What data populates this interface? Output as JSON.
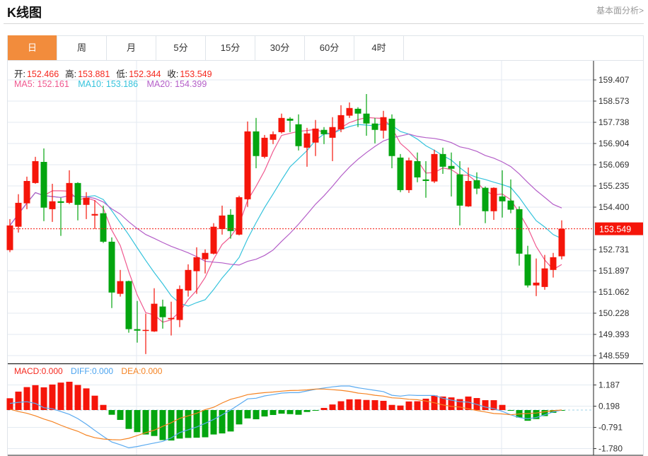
{
  "header": {
    "title": "K线图",
    "fundamental_link": "基本面分析>"
  },
  "tabs": [
    {
      "label": "日",
      "active": true
    },
    {
      "label": "周"
    },
    {
      "label": "月"
    },
    {
      "label": "5分"
    },
    {
      "label": "15分"
    },
    {
      "label": "30分"
    },
    {
      "label": "60分"
    },
    {
      "label": "4时"
    }
  ],
  "legend": {
    "open_label": "开:",
    "open": "152.466",
    "high_label": "高:",
    "high": "153.881",
    "low_label": "低:",
    "low": "152.344",
    "close_label": "收:",
    "close": "153.549",
    "ma5": "MA5: 152.161",
    "ma10": "MA10: 153.186",
    "ma20": "MA20: 154.399"
  },
  "macd_legend": {
    "macd": "MACD:0.000",
    "diff": "DIFF:0.000",
    "dea": "DEA:0.000"
  },
  "colors": {
    "up": "#f5150a",
    "down": "#03a50f",
    "ma5": "#f0588f",
    "ma10": "#35c3dc",
    "ma20": "#b45ec8",
    "diff": "#5aaaf0",
    "dea": "#f58322",
    "active_tab": "#f28c3c"
  },
  "chart_data": [
    {
      "type": "candlestick",
      "current_price": "153.549",
      "y_ticks": [
        "159.407",
        "158.573",
        "157.738",
        "156.904",
        "156.069",
        "155.235",
        "154.400",
        "153.549",
        "152.731",
        "151.897",
        "151.062",
        "150.228",
        "149.393",
        "148.559"
      ],
      "ylim": [
        148.559,
        159.407
      ],
      "ohlc_fields": [
        "open",
        "high",
        "low",
        "close"
      ],
      "candles": [
        [
          152.71,
          153.93,
          152.63,
          153.68
        ],
        [
          153.63,
          154.91,
          153.4,
          154.57
        ],
        [
          154.55,
          155.6,
          154.32,
          155.43
        ],
        [
          155.35,
          156.38,
          155.32,
          156.21
        ],
        [
          156.18,
          156.71,
          153.85,
          154.38
        ],
        [
          154.32,
          155.32,
          153.82,
          154.63
        ],
        [
          154.63,
          154.77,
          153.27,
          154.57
        ],
        [
          154.57,
          155.85,
          154.52,
          155.35
        ],
        [
          155.35,
          155.38,
          153.88,
          154.49
        ],
        [
          154.49,
          154.99,
          153.93,
          154.77
        ],
        [
          154.07,
          154.68,
          153.54,
          154.13
        ],
        [
          154.16,
          154.46,
          152.99,
          153.04
        ],
        [
          153.04,
          153.21,
          150.43,
          151.04
        ],
        [
          150.99,
          151.93,
          150.88,
          151.49
        ],
        [
          151.49,
          151.51,
          149.46,
          149.6
        ],
        [
          149.6,
          150.71,
          149.07,
          149.54
        ],
        [
          149.54,
          150.21,
          148.62,
          149.57
        ],
        [
          149.51,
          151.21,
          149.49,
          150.6
        ],
        [
          150.49,
          150.76,
          149.62,
          150.07
        ],
        [
          149.99,
          150.68,
          149.35,
          150.04
        ],
        [
          149.96,
          151.32,
          149.68,
          151.18
        ],
        [
          151.12,
          152.15,
          150.88,
          151.93
        ],
        [
          151.88,
          152.82,
          150.99,
          152.43
        ],
        [
          152.35,
          152.74,
          151.79,
          152.6
        ],
        [
          152.57,
          153.77,
          152.54,
          153.63
        ],
        [
          153.54,
          154.46,
          153.32,
          154.07
        ],
        [
          154.1,
          154.32,
          153.16,
          153.46
        ],
        [
          153.32,
          154.85,
          153.29,
          154.79
        ],
        [
          154.71,
          157.77,
          154.41,
          157.38
        ],
        [
          157.38,
          157.91,
          155.93,
          156.41
        ],
        [
          156.38,
          157.24,
          156.32,
          157.13
        ],
        [
          157.05,
          157.38,
          156.88,
          157.27
        ],
        [
          157.35,
          158.08,
          157.3,
          157.91
        ],
        [
          157.88,
          157.94,
          157.35,
          157.8
        ],
        [
          157.66,
          158.05,
          156.63,
          156.8
        ],
        [
          156.74,
          157.52,
          155.99,
          157.3
        ],
        [
          156.94,
          157.83,
          156.41,
          157.49
        ],
        [
          157.44,
          157.55,
          156.88,
          157.27
        ],
        [
          157.13,
          157.94,
          156.21,
          157.55
        ],
        [
          157.46,
          158.41,
          157.35,
          158.02
        ],
        [
          158.0,
          158.52,
          157.91,
          158.3
        ],
        [
          158.27,
          158.33,
          157.55,
          158.08
        ],
        [
          158.08,
          158.85,
          157.21,
          157.69
        ],
        [
          157.69,
          157.91,
          156.91,
          157.44
        ],
        [
          157.41,
          158.19,
          157.1,
          157.94
        ],
        [
          157.88,
          158.05,
          155.93,
          156.41
        ],
        [
          156.35,
          156.49,
          154.99,
          155.07
        ],
        [
          155.07,
          156.35,
          154.96,
          156.24
        ],
        [
          156.21,
          156.55,
          155.38,
          155.57
        ],
        [
          155.49,
          156.21,
          154.77,
          155.43
        ],
        [
          155.41,
          156.66,
          155.35,
          156.49
        ],
        [
          156.49,
          156.74,
          155.71,
          155.99
        ],
        [
          156.02,
          156.55,
          154.82,
          155.91
        ],
        [
          155.69,
          156.21,
          153.68,
          154.46
        ],
        [
          154.43,
          155.96,
          154.41,
          155.43
        ],
        [
          155.46,
          155.77,
          154.91,
          155.13
        ],
        [
          155.16,
          155.21,
          153.77,
          154.24
        ],
        [
          154.24,
          155.18,
          153.9,
          155.16
        ],
        [
          154.82,
          155.85,
          153.99,
          154.63
        ],
        [
          154.66,
          155.49,
          154.16,
          154.3
        ],
        [
          154.32,
          154.43,
          152.1,
          152.57
        ],
        [
          152.54,
          152.88,
          151.24,
          151.32
        ],
        [
          151.32,
          152.38,
          150.9,
          151.43
        ],
        [
          151.26,
          152.52,
          151.15,
          151.99
        ],
        [
          151.93,
          152.6,
          151.63,
          152.43
        ],
        [
          152.466,
          153.881,
          152.344,
          153.549
        ]
      ],
      "moving_averages": [
        5,
        10,
        20
      ]
    },
    {
      "type": "bar+line",
      "y_ticks": [
        "1.187",
        "0.198",
        "-0.791",
        "-1.780"
      ],
      "macd_hist": [
        0.55,
        0.86,
        1.07,
        1.16,
        1.06,
        1.19,
        1.28,
        1.32,
        1.17,
        1.01,
        0.67,
        0.24,
        -0.22,
        -0.46,
        -0.88,
        -1.03,
        -1.14,
        -1.21,
        -1.4,
        -1.42,
        -1.33,
        -1.3,
        -1.29,
        -1.27,
        -1.14,
        -1.09,
        -1.0,
        -0.67,
        -0.39,
        -0.43,
        -0.3,
        -0.23,
        -0.17,
        -0.19,
        -0.22,
        -0.09,
        -0.01,
        0.1,
        0.26,
        0.41,
        0.5,
        0.5,
        0.47,
        0.46,
        0.43,
        0.24,
        0.21,
        0.4,
        0.41,
        0.53,
        0.68,
        0.63,
        0.59,
        0.51,
        0.63,
        0.56,
        0.46,
        0.46,
        0.24,
        -0.01,
        -0.35,
        -0.5,
        -0.42,
        -0.28,
        -0.13,
        -0.01
      ],
      "diff": [
        0.31,
        0.36,
        0.39,
        0.31,
        0.11,
        0.06,
        -0.07,
        -0.2,
        -0.4,
        -0.66,
        -0.95,
        -1.23,
        -1.49,
        -1.62,
        -1.76,
        -1.7,
        -1.62,
        -1.54,
        -1.46,
        -1.3,
        -1.05,
        -0.92,
        -0.79,
        -0.62,
        -0.44,
        -0.22,
        0,
        0.26,
        0.52,
        0.55,
        0.66,
        0.72,
        0.79,
        0.81,
        0.81,
        0.89,
        0.97,
        1.03,
        1.08,
        1.12,
        1.12,
        1.04,
        0.98,
        0.92,
        0.86,
        0.69,
        0.65,
        0.7,
        0.68,
        0.68,
        0.68,
        0.55,
        0.46,
        0.39,
        0.37,
        0.26,
        0.14,
        0.07,
        -0.06,
        -0.22,
        -0.35,
        -0.41,
        -0.35,
        -0.22,
        -0.09,
        0
      ],
      "dea": [
        0.04,
        -0.07,
        -0.15,
        -0.27,
        -0.42,
        -0.54,
        -0.71,
        -0.86,
        -0.99,
        -1.17,
        -1.29,
        -1.35,
        -1.38,
        -1.39,
        -1.32,
        -1.19,
        -1.05,
        -0.94,
        -0.76,
        -0.59,
        -0.39,
        -0.27,
        -0.15,
        0.02,
        0.13,
        0.33,
        0.5,
        0.6,
        0.72,
        0.77,
        0.81,
        0.84,
        0.88,
        0.91,
        0.92,
        0.94,
        0.98,
        0.98,
        0.95,
        0.92,
        0.87,
        0.79,
        0.75,
        0.69,
        0.65,
        0.57,
        0.55,
        0.5,
        0.48,
        0.42,
        0.34,
        0.24,
        0.17,
        0.14,
        0.06,
        -0.02,
        -0.09,
        -0.16,
        -0.18,
        -0.22,
        -0.18,
        -0.16,
        -0.14,
        -0.08,
        -0.03,
        0
      ]
    }
  ]
}
